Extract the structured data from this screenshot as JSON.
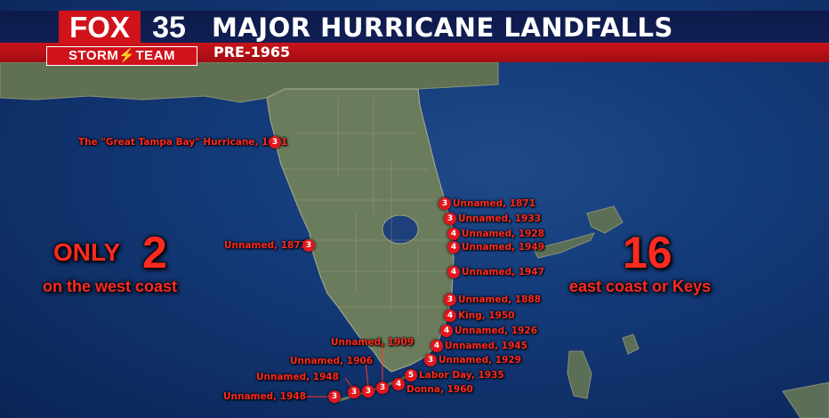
{
  "header": {
    "title": "MAJOR HURRICANE LANDFALLS",
    "subtitle": "PRE-1965"
  },
  "logo": {
    "fox": "FOX",
    "channel": "35",
    "storm_team": "STORM⚡TEAM"
  },
  "west_summary": {
    "prefix": "ONLY",
    "count": "2",
    "caption": "on the west coast"
  },
  "east_summary": {
    "count": "16",
    "caption": "east coast or Keys"
  },
  "colors": {
    "accent": "#e2161d",
    "header_navy": "#121f55",
    "land": "#6b7c5c",
    "ocean": "#133a78"
  },
  "landfalls": [
    {
      "label": "The \"Great Tampa Bay\" Hurricane, 1921",
      "category": "3",
      "coast": "west"
    },
    {
      "label": "Unnamed, 1873",
      "category": "3",
      "coast": "west"
    },
    {
      "label": "Unnamed, 1871",
      "category": "3",
      "coast": "east"
    },
    {
      "label": "Unnamed, 1933",
      "category": "3",
      "coast": "east"
    },
    {
      "label": "Unnamed, 1928",
      "category": "4",
      "coast": "east"
    },
    {
      "label": "Unnamed, 1949",
      "category": "4",
      "coast": "east"
    },
    {
      "label": "Unnamed, 1947",
      "category": "4",
      "coast": "east"
    },
    {
      "label": "Unnamed, 1888",
      "category": "3",
      "coast": "east"
    },
    {
      "label": "King, 1950",
      "category": "4",
      "coast": "east"
    },
    {
      "label": "Unnamed, 1926",
      "category": "4",
      "coast": "east"
    },
    {
      "label": "Unnamed, 1945",
      "category": "4",
      "coast": "east"
    },
    {
      "label": "Unnamed, 1929",
      "category": "3",
      "coast": "east"
    },
    {
      "label": "Labor Day, 1935",
      "category": "5",
      "coast": "keys"
    },
    {
      "label": "Donna, 1960",
      "category": "4",
      "coast": "keys"
    },
    {
      "label": "Unnamed, 1909",
      "category": "3",
      "coast": "keys"
    },
    {
      "label": "Unnamed, 1906",
      "category": "3",
      "coast": "keys"
    },
    {
      "label": "Unnamed, 1948",
      "category": "3",
      "coast": "keys"
    },
    {
      "label": "Unnamed, 1948",
      "category": "3",
      "coast": "keys"
    }
  ]
}
